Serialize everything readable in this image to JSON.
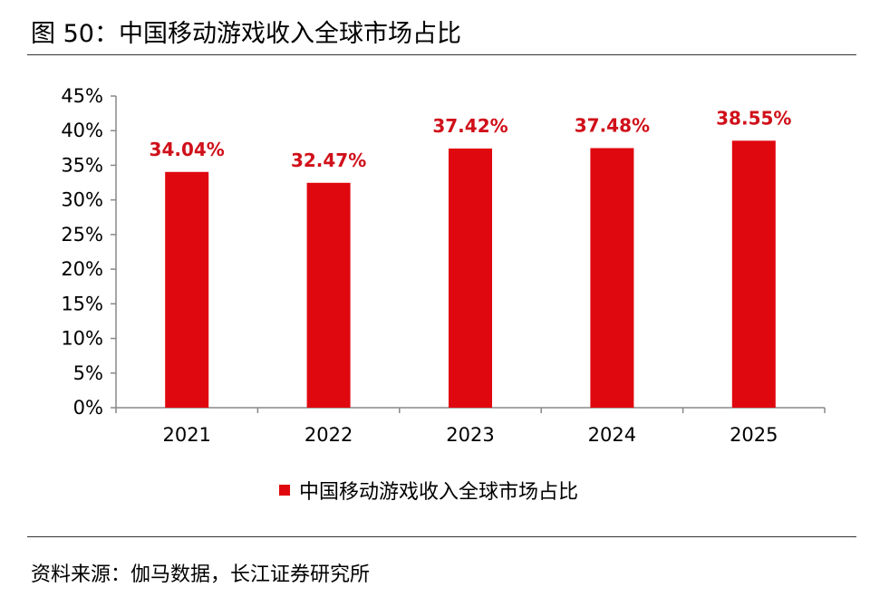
{
  "figure": {
    "title": "图 50：中国移动游戏收入全球市场占比",
    "source": "资料来源：伽马数据，长江证券研究所"
  },
  "colors": {
    "bar": "#e0080f",
    "data_label": "#d0101a",
    "axis": "#888888",
    "rule": "#333333"
  },
  "chart_data": {
    "type": "bar",
    "title": "",
    "xlabel": "",
    "ylabel": "",
    "categories": [
      "2021",
      "2022",
      "2023",
      "2024",
      "2025"
    ],
    "series": [
      {
        "name": "中国移动游戏收入全球市场占比",
        "values": [
          34.04,
          32.47,
          37.42,
          37.48,
          38.55
        ],
        "labels": [
          "34.04%",
          "32.47%",
          "37.42%",
          "37.48%",
          "38.55%"
        ]
      }
    ],
    "ylim": [
      0,
      45
    ],
    "yticks": [
      0,
      5,
      10,
      15,
      20,
      25,
      30,
      35,
      40,
      45
    ],
    "ytick_labels": [
      "0%",
      "5%",
      "10%",
      "15%",
      "20%",
      "25%",
      "30%",
      "35%",
      "40%",
      "45%"
    ],
    "grid": false,
    "legend_position": "bottom"
  }
}
